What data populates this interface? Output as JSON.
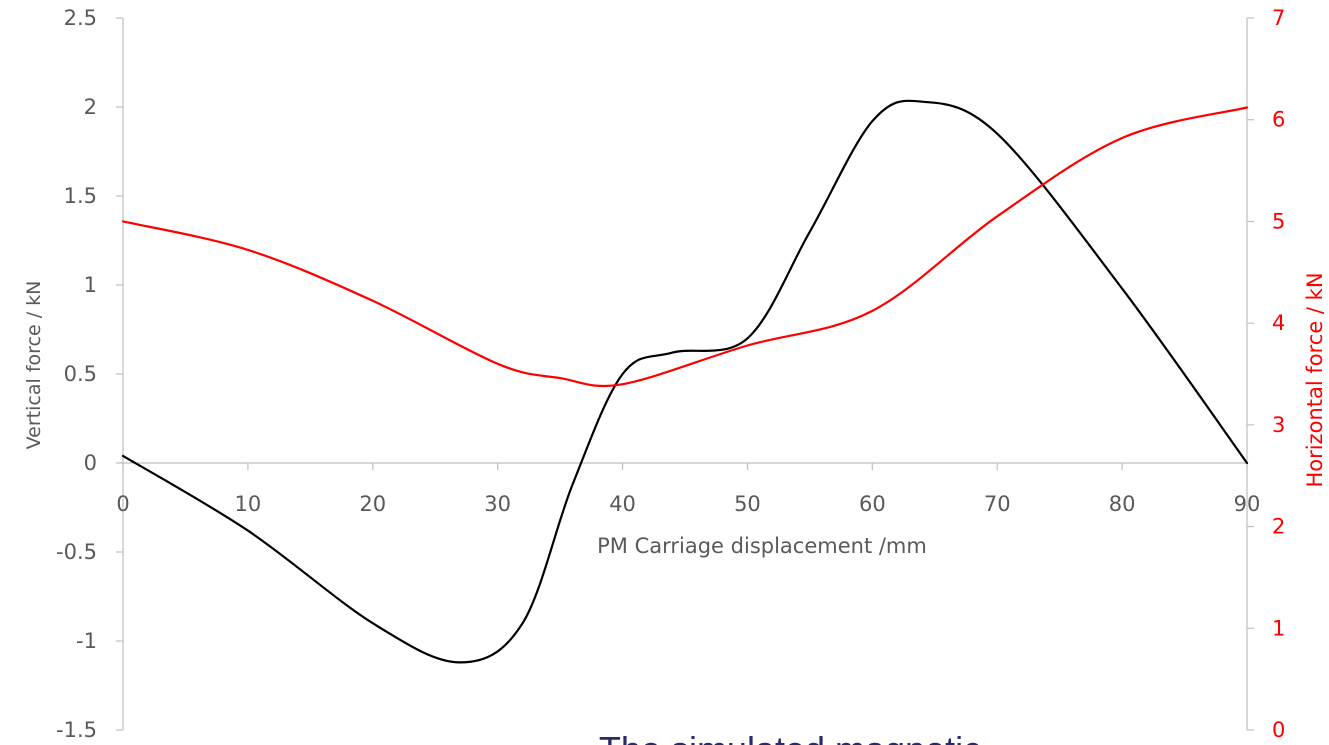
{
  "chart_data": {
    "type": "line",
    "title": "",
    "xlabel": "PM Carriage displacement /mm",
    "ylabel": "Vertical force / kN",
    "y2label": "Horizontal force / kN",
    "xlim": [
      0,
      90
    ],
    "ylim": [
      -1.5,
      2.5
    ],
    "y2lim": [
      0,
      7
    ],
    "x_ticks": [
      "0",
      "10",
      "20",
      "30",
      "40",
      "50",
      "60",
      "70",
      "80",
      "90"
    ],
    "y_ticks": [
      "2.5",
      "2",
      "1.5",
      "1",
      "0.5",
      "0",
      "-0.5",
      "-1",
      "-1.5"
    ],
    "y2_ticks": [
      "7",
      "6",
      "5",
      "4",
      "3",
      "2",
      "1",
      "0"
    ],
    "grid": false,
    "legend": "none",
    "series": [
      {
        "axis": "left",
        "color": "#000000",
        "x": [
          0,
          10,
          20,
          27,
          32,
          36,
          40,
          44,
          50,
          55,
          60,
          64,
          70,
          80,
          90
        ],
        "values": [
          0.04,
          -0.38,
          -0.9,
          -1.12,
          -0.9,
          -0.12,
          0.5,
          0.62,
          0.7,
          1.3,
          1.92,
          2.03,
          1.85,
          0.98,
          0.0
        ]
      },
      {
        "axis": "right",
        "color": "#ff0000",
        "x": [
          0,
          10,
          20,
          30,
          35,
          40,
          50,
          60,
          70,
          80,
          90
        ],
        "values": [
          5.0,
          4.72,
          4.22,
          3.6,
          3.46,
          3.4,
          3.78,
          4.12,
          5.05,
          5.82,
          6.12
        ]
      }
    ],
    "caption": "The simulated magnetic"
  }
}
